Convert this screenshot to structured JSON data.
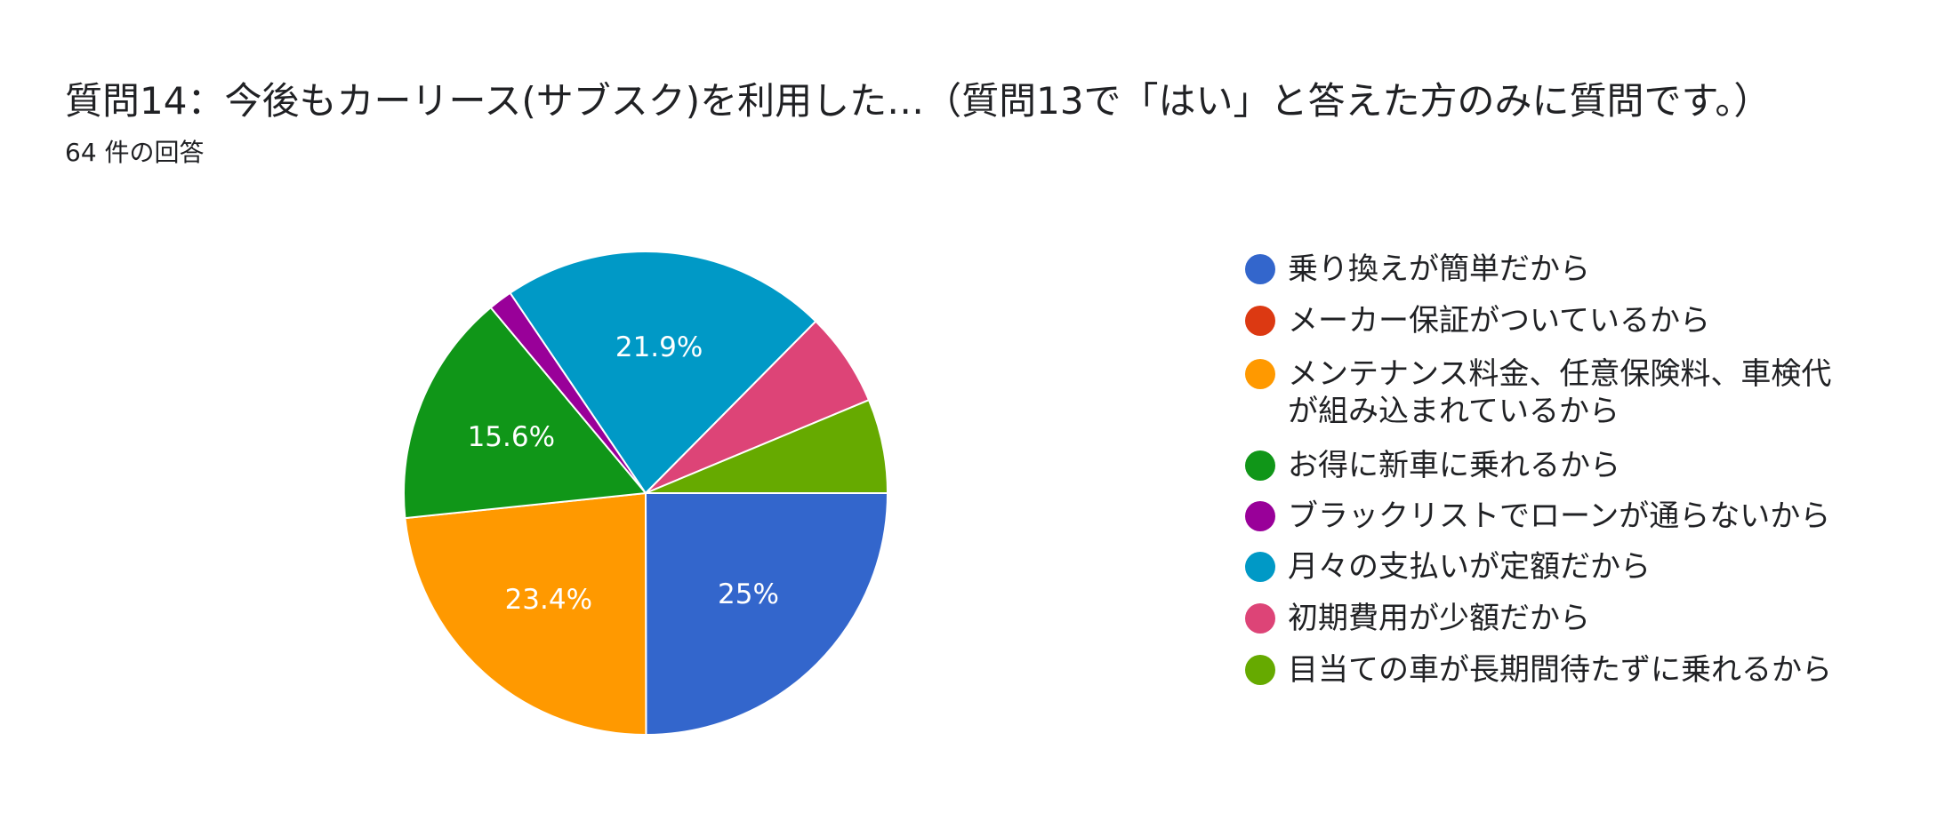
{
  "chart_data": {
    "type": "pie",
    "title": "質問14：今後もカーリース(サブスク)を利用した…（質問13で「はい」と答えた方のみに質問です。）",
    "subtitle": "64 件の回答",
    "categories": [
      "乗り換えが簡単だから",
      "メーカー保証がついているから",
      "メンテナンス料金、任意保険料、車検代が組み込まれているから",
      "お得に新車に乗れるから",
      "ブラックリストでローンが通らないから",
      "月々の支払いが定額だから",
      "初期費用が少額だから",
      "目当ての車が長期間待たずに乗れるから"
    ],
    "values": [
      25,
      0,
      23.4,
      15.6,
      1.6,
      21.9,
      6.3,
      6.3
    ],
    "value_labels": [
      "25%",
      null,
      "23.4%",
      "15.6%",
      null,
      "21.9%",
      null,
      null
    ],
    "colors": [
      "#3366cc",
      "#dc3912",
      "#ff9900",
      "#109618",
      "#990099",
      "#0099c6",
      "#dd4477",
      "#66aa00"
    ],
    "legend": "right"
  }
}
